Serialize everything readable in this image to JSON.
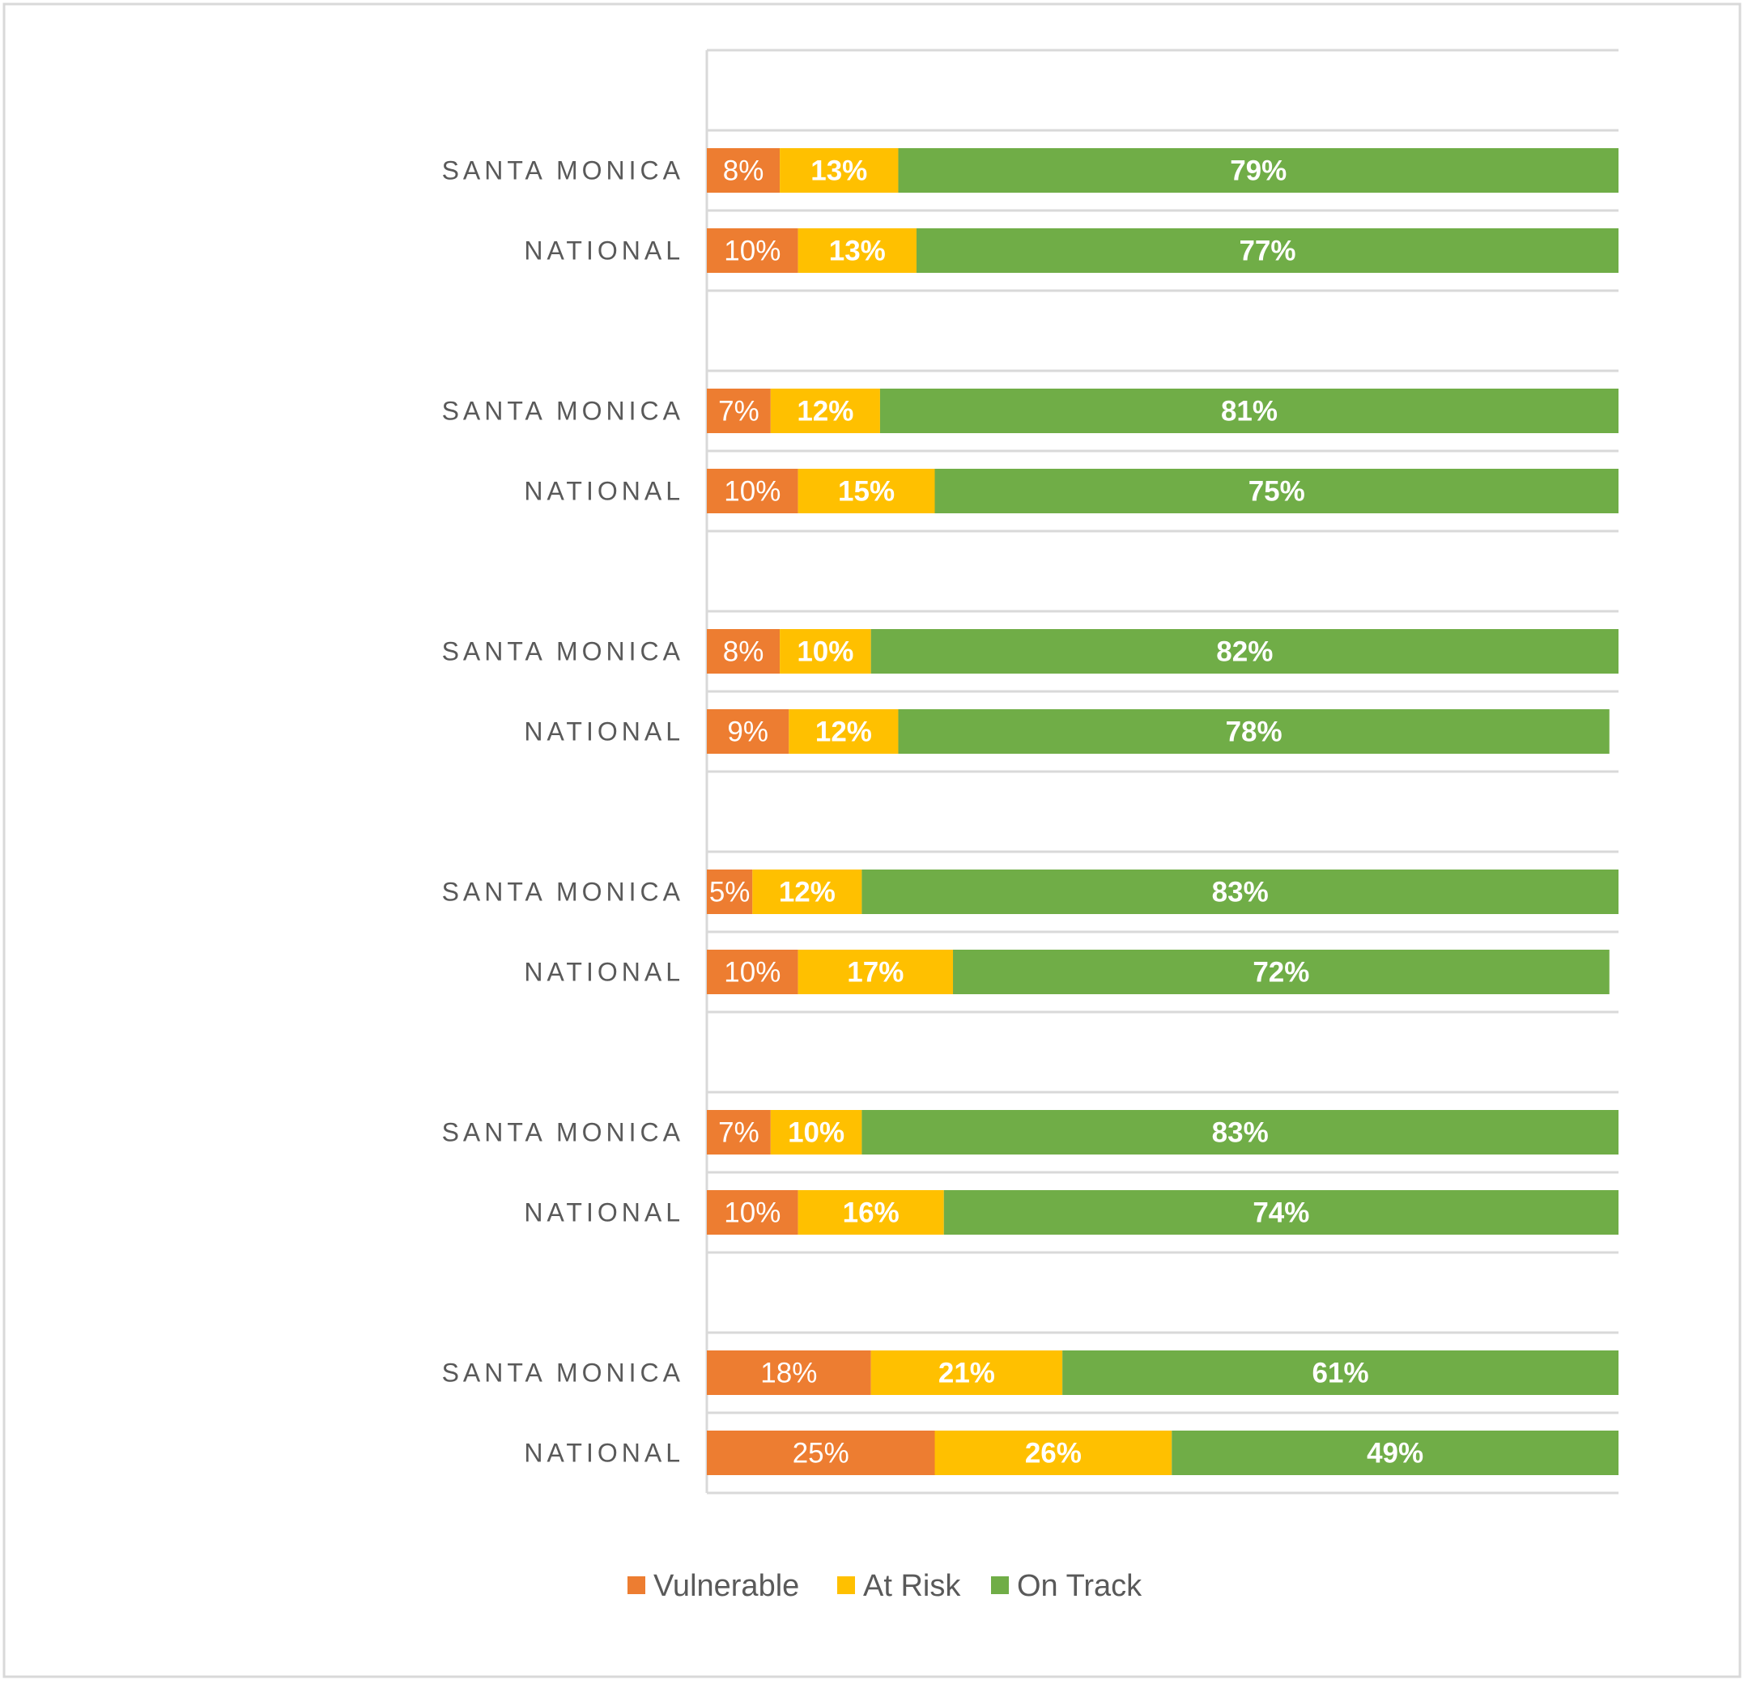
{
  "chart_data": {
    "type": "bar",
    "orientation": "horizontal",
    "stacked": "percent",
    "title": "",
    "xlabel": "",
    "ylabel": "",
    "xlim": [
      0,
      100
    ],
    "grid": true,
    "legend_position": "bottom",
    "groups": [
      {
        "categories": [
          "SANTA MONICA",
          "NATIONAL"
        ]
      },
      {
        "categories": [
          "SANTA MONICA",
          "NATIONAL"
        ]
      },
      {
        "categories": [
          "SANTA MONICA",
          "NATIONAL"
        ]
      },
      {
        "categories": [
          "SANTA MONICA",
          "NATIONAL"
        ]
      },
      {
        "categories": [
          "SANTA MONICA",
          "NATIONAL"
        ]
      },
      {
        "categories": [
          "SANTA MONICA",
          "NATIONAL"
        ]
      }
    ],
    "categories": [
      "SANTA MONICA",
      "NATIONAL",
      "SANTA MONICA",
      "NATIONAL",
      "SANTA MONICA",
      "NATIONAL",
      "SANTA MONICA",
      "NATIONAL",
      "SANTA MONICA",
      "NATIONAL",
      "SANTA MONICA",
      "NATIONAL"
    ],
    "series": [
      {
        "name": "Vulnerable",
        "color": "#ED7D31",
        "label_weight": "normal",
        "values": [
          8,
          10,
          7,
          10,
          8,
          9,
          5,
          10,
          7,
          10,
          18,
          25
        ]
      },
      {
        "name": "At Risk",
        "color": "#FFC000",
        "label_weight": "bold",
        "values": [
          13,
          13,
          12,
          15,
          10,
          12,
          12,
          17,
          10,
          16,
          21,
          26
        ]
      },
      {
        "name": "On Track",
        "color": "#70AD47",
        "label_weight": "bold",
        "values": [
          79,
          77,
          81,
          75,
          82,
          78,
          83,
          72,
          83,
          74,
          61,
          49
        ]
      }
    ],
    "data_label_suffix": "%",
    "legend": [
      "Vulnerable",
      "At Risk",
      "On Track"
    ]
  },
  "colors": {
    "gridline": "#D9D9D9",
    "label_text": "#595959",
    "data_label_text": "#FFFFFF"
  }
}
